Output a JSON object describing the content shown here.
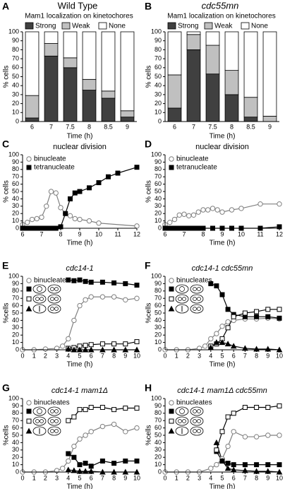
{
  "chart_data": [
    {
      "panel": "A",
      "type": "bar",
      "stacked": true,
      "title": "Wild Type",
      "title_italic": false,
      "subtitle": "Mam1 localization on kinetochores",
      "categories": [
        "6",
        "7",
        "7.5",
        "8",
        "8.5",
        "9"
      ],
      "series": [
        {
          "name": "Strong",
          "color": "#404040",
          "values": [
            4,
            73,
            60,
            35,
            26,
            5
          ]
        },
        {
          "name": "Weak",
          "color": "#c0c0c0",
          "values": [
            25,
            14,
            11,
            12,
            8,
            7
          ]
        },
        {
          "name": "None",
          "color": "#ffffff",
          "values": [
            71,
            13,
            29,
            53,
            66,
            88
          ]
        }
      ],
      "ylim": [
        0,
        100
      ],
      "yticks": [
        0,
        10,
        20,
        30,
        40,
        50,
        60,
        70,
        80,
        90,
        100
      ],
      "xlabel": "Time (h)",
      "ylabel": "% cells",
      "legend": "above"
    },
    {
      "panel": "B",
      "type": "bar",
      "stacked": true,
      "title": "cdc55mn",
      "title_italic": true,
      "subtitle": "Mam1 localization on kinetochores",
      "categories": [
        "6",
        "7",
        "7.5",
        "8",
        "8.5",
        "9"
      ],
      "series": [
        {
          "name": "Strong",
          "color": "#404040",
          "values": [
            15,
            80,
            53,
            30,
            5,
            0
          ]
        },
        {
          "name": "Weak",
          "color": "#c0c0c0",
          "values": [
            37,
            17,
            32,
            27,
            22,
            6
          ]
        },
        {
          "name": "None",
          "color": "#ffffff",
          "values": [
            48,
            3,
            15,
            43,
            73,
            94
          ]
        }
      ],
      "ylim": [
        0,
        100
      ],
      "yticks": [
        0,
        10,
        20,
        30,
        40,
        50,
        60,
        70,
        80,
        90,
        100
      ],
      "xlabel": "Time (h)",
      "ylabel": "% cells",
      "legend": "above"
    },
    {
      "panel": "C",
      "type": "line",
      "title": "nuclear division",
      "title_italic": false,
      "xlim": [
        6,
        12
      ],
      "xticks": [
        6,
        7,
        8,
        9,
        10,
        11,
        12
      ],
      "ylim": [
        0,
        100
      ],
      "yticks": [
        0,
        10,
        20,
        30,
        40,
        50,
        60,
        70,
        80,
        90,
        100
      ],
      "xlabel": "Time (h)",
      "ylabel": "% cells",
      "legend": "top-left",
      "series": [
        {
          "name": "binucleate",
          "color": "#808080",
          "marker": "circle",
          "filled": false,
          "x": [
            6,
            6.25,
            6.5,
            6.75,
            7,
            7.25,
            7.5,
            7.75,
            8,
            8.25,
            8.5,
            8.75,
            9,
            9.5,
            10,
            12
          ],
          "values": [
            5,
            8,
            12,
            13,
            15,
            30,
            50,
            48,
            28,
            20,
            17,
            13,
            12,
            10,
            7,
            3
          ]
        },
        {
          "name": "tetranucleate",
          "color": "#000000",
          "marker": "square",
          "filled": true,
          "x": [
            6,
            6.25,
            6.5,
            6.75,
            7,
            7.25,
            7.5,
            7.75,
            8,
            8.25,
            8.5,
            8.75,
            9,
            9.5,
            10,
            10.5,
            11,
            12
          ],
          "values": [
            0,
            0,
            0,
            0,
            0,
            0,
            0,
            0,
            2,
            20,
            40,
            48,
            50,
            55,
            62,
            70,
            75,
            83
          ]
        }
      ]
    },
    {
      "panel": "D",
      "type": "line",
      "title": "nuclear division",
      "title_italic": false,
      "xlim": [
        6,
        12
      ],
      "xticks": [
        6,
        7,
        8,
        9,
        10,
        11,
        12
      ],
      "ylim": [
        0,
        100
      ],
      "yticks": [
        0,
        10,
        20,
        30,
        40,
        50,
        60,
        70,
        80,
        90,
        100
      ],
      "xlabel": "Time (h)",
      "ylabel": "% cells",
      "legend": "top-left",
      "series": [
        {
          "name": "binucleate",
          "color": "#808080",
          "marker": "circle",
          "filled": false,
          "x": [
            6,
            6.25,
            6.5,
            6.75,
            7,
            7.25,
            7.5,
            7.75,
            8,
            8.25,
            8.5,
            8.75,
            9,
            9.5,
            10,
            11,
            12
          ],
          "values": [
            5,
            8,
            12,
            18,
            19,
            17,
            18,
            22,
            25,
            25,
            27,
            25,
            22,
            25,
            27,
            33,
            33
          ]
        },
        {
          "name": "tetranucleate",
          "color": "#000000",
          "marker": "square",
          "filled": true,
          "x": [
            6,
            6.25,
            6.5,
            6.75,
            7,
            7.25,
            7.5,
            7.75,
            8,
            8.5,
            9,
            9.5,
            10,
            11,
            12
          ],
          "values": [
            0,
            0,
            0,
            0,
            0,
            0,
            0,
            0,
            0,
            0,
            0,
            0,
            0,
            0,
            2
          ]
        }
      ]
    },
    {
      "panel": "E",
      "type": "line",
      "title": "cdc14-1",
      "title_italic": true,
      "xlim": [
        0,
        10
      ],
      "xticks": [
        0,
        1,
        2,
        3,
        4,
        5,
        6,
        7,
        8,
        9,
        10
      ],
      "ylim": [
        0,
        100
      ],
      "yticks": [
        0,
        10,
        20,
        30,
        40,
        50,
        60,
        70,
        80,
        90,
        100
      ],
      "xlabel": "Time (h)",
      "ylabel": "%cells",
      "legend": "top-left",
      "series": [
        {
          "name": "binucleates",
          "color": "#808080",
          "marker": "circle",
          "filled": false,
          "x": [
            0,
            1,
            2,
            3,
            3.5,
            4,
            4.5,
            5,
            5.5,
            6,
            7,
            8,
            9,
            10
          ],
          "values": [
            0,
            0,
            1,
            2,
            5,
            15,
            40,
            60,
            68,
            72,
            72,
            72,
            68,
            70
          ]
        },
        {
          "color": "#000000",
          "marker": "square",
          "filled": true,
          "x": [
            4,
            4.5,
            5,
            5.5,
            6,
            7,
            8,
            9,
            10
          ],
          "values": [
            95,
            94,
            95,
            93,
            92,
            92,
            91,
            90,
            88
          ]
        },
        {
          "color": "#000000",
          "marker": "square",
          "filled": false,
          "x": [
            4,
            4.5,
            5,
            5.5,
            6,
            7,
            8,
            9,
            10
          ],
          "values": [
            2,
            3,
            5,
            6,
            7,
            8,
            8,
            8,
            11
          ]
        },
        {
          "color": "#000000",
          "marker": "triangle",
          "filled": true,
          "x": [
            4,
            4.5,
            5,
            5.5,
            6,
            7,
            8,
            9,
            10
          ],
          "values": [
            1,
            0,
            0,
            0,
            0,
            0,
            0,
            0,
            0
          ]
        }
      ]
    },
    {
      "panel": "F",
      "type": "line",
      "title": "cdc14-1 cdc55mn",
      "title_italic": true,
      "xlim": [
        0,
        10
      ],
      "xticks": [
        0,
        1,
        2,
        3,
        4,
        5,
        6,
        7,
        8,
        9,
        10
      ],
      "ylim": [
        0,
        100
      ],
      "yticks": [
        0,
        10,
        20,
        30,
        40,
        50,
        60,
        70,
        80,
        90,
        100
      ],
      "xlabel": "Time (h)",
      "ylabel": "%cells",
      "legend": "top-left",
      "series": [
        {
          "name": "binucleates",
          "color": "#808080",
          "marker": "circle",
          "filled": false,
          "x": [
            0,
            1,
            2,
            3,
            3.5,
            4,
            4.5,
            5,
            5.5,
            6,
            7,
            8,
            9,
            10
          ],
          "values": [
            0,
            0,
            0,
            2,
            5,
            15,
            22,
            32,
            38,
            40,
            42,
            42,
            43,
            42
          ]
        },
        {
          "color": "#000000",
          "marker": "square",
          "filled": true,
          "x": [
            4,
            4.5,
            5,
            5.5,
            6,
            7,
            8,
            9,
            10
          ],
          "values": [
            90,
            87,
            75,
            55,
            48,
            45,
            45,
            45,
            43
          ]
        },
        {
          "color": "#000000",
          "marker": "square",
          "filled": false,
          "x": [
            4,
            4.5,
            5,
            5.5,
            6,
            7,
            8,
            9,
            10
          ],
          "values": [
            5,
            8,
            15,
            30,
            45,
            50,
            52,
            55,
            55
          ]
        },
        {
          "color": "#000000",
          "marker": "triangle",
          "filled": true,
          "x": [
            4,
            4.5,
            5,
            5.5,
            6,
            7,
            8,
            9,
            10
          ],
          "values": [
            3,
            10,
            10,
            8,
            5,
            2,
            1,
            1,
            0
          ]
        }
      ]
    },
    {
      "panel": "G",
      "type": "line",
      "title": "cdc14-1 mam1Δ",
      "title_italic": true,
      "xlim": [
        0,
        10
      ],
      "xticks": [
        0,
        1,
        2,
        3,
        4,
        5,
        6,
        7,
        8,
        9,
        10
      ],
      "ylim": [
        0,
        100
      ],
      "yticks": [
        0,
        10,
        20,
        30,
        40,
        50,
        60,
        70,
        80,
        90,
        100
      ],
      "xlabel": "Time (h)",
      "ylabel": "%cells",
      "legend": "top-left",
      "series": [
        {
          "name": "binucleates",
          "color": "#808080",
          "marker": "circle",
          "filled": false,
          "x": [
            0,
            1,
            2,
            3,
            3.5,
            4,
            4.5,
            5,
            5.5,
            6,
            7,
            8,
            9,
            10
          ],
          "values": [
            0,
            0,
            0,
            2,
            5,
            15,
            35,
            45,
            50,
            55,
            62,
            65,
            55,
            60
          ]
        },
        {
          "color": "#000000",
          "marker": "square",
          "filled": true,
          "x": [
            4,
            4.5,
            5,
            5.5,
            6,
            7,
            8,
            9,
            10
          ],
          "values": [
            25,
            20,
            10,
            12,
            8,
            15,
            12,
            15,
            15
          ]
        },
        {
          "color": "#000000",
          "marker": "square",
          "filled": false,
          "x": [
            4,
            4.5,
            5,
            5.5,
            6,
            7,
            8,
            9,
            10
          ],
          "values": [
            70,
            75,
            85,
            85,
            88,
            88,
            85,
            87,
            87
          ]
        },
        {
          "color": "#000000",
          "marker": "triangle",
          "filled": true,
          "x": [
            4,
            4.5,
            5,
            5.5,
            6,
            7,
            8,
            9,
            10
          ],
          "values": [
            3,
            2,
            1,
            1,
            1,
            0,
            0,
            0,
            0
          ]
        }
      ]
    },
    {
      "panel": "H",
      "type": "line",
      "title": "cdc14-1 mam1Δ cdc55mn",
      "title_italic": true,
      "xlim": [
        0,
        10
      ],
      "xticks": [
        0,
        1,
        2,
        3,
        4,
        5,
        6,
        7,
        8,
        9,
        10
      ],
      "ylim": [
        0,
        100
      ],
      "yticks": [
        0,
        10,
        20,
        30,
        40,
        50,
        60,
        70,
        80,
        90,
        100
      ],
      "xlabel": "Time (h)",
      "ylabel": "%cells",
      "legend": "top-left",
      "series": [
        {
          "name": "binucleates",
          "color": "#808080",
          "marker": "circle",
          "filled": false,
          "x": [
            0,
            1,
            2,
            3,
            4,
            4.5,
            5,
            5.5,
            6,
            7,
            8,
            9,
            10
          ],
          "values": [
            0,
            0,
            0,
            0,
            5,
            10,
            18,
            35,
            55,
            48,
            48,
            50,
            50
          ]
        },
        {
          "color": "#000000",
          "marker": "square",
          "filled": true,
          "x": [
            4.5,
            5,
            5.5,
            6,
            7,
            8,
            9,
            10
          ],
          "values": [
            28,
            15,
            12,
            10,
            10,
            10,
            10,
            10
          ]
        },
        {
          "color": "#000000",
          "marker": "square",
          "filled": false,
          "x": [
            4.5,
            5,
            5.5,
            6,
            7,
            8,
            9,
            10
          ],
          "values": [
            30,
            55,
            75,
            80,
            88,
            88,
            88,
            90
          ]
        },
        {
          "color": "#000000",
          "marker": "triangle",
          "filled": true,
          "x": [
            4.5,
            5,
            5.5,
            6,
            7,
            8,
            9,
            10
          ],
          "values": [
            40,
            15,
            5,
            3,
            2,
            1,
            1,
            0
          ]
        }
      ]
    }
  ]
}
